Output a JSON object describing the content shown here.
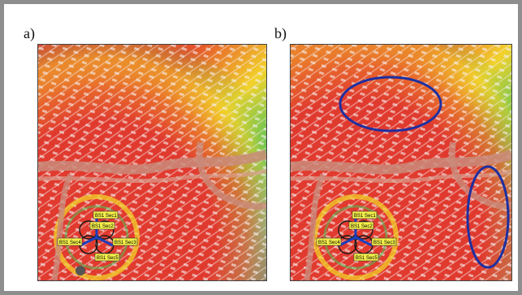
{
  "panels": [
    {
      "label": "a)",
      "sector_labels": [
        "BS1 Sec1",
        "BS1 Sec2",
        "BS1 Sec3",
        "BS1 Sec4",
        "BS1 Sec5"
      ]
    },
    {
      "label": "b)",
      "sector_labels": [
        "BS1 Sec1",
        "BS1 Sec2",
        "BS1 Sec3",
        "BS1 Sec4",
        "BS1 Sec5"
      ],
      "highlight_color": "#1e2fa0"
    }
  ],
  "colors": {
    "coverage_high": "#e23a2e",
    "coverage_mid": "#f2d22a",
    "coverage_low": "#4cc35a",
    "coverage_weak": "#1aa3e8",
    "coverage_none": "#1b3fbf",
    "road": "#c98b7a",
    "label_bg": "#f4f04a"
  }
}
